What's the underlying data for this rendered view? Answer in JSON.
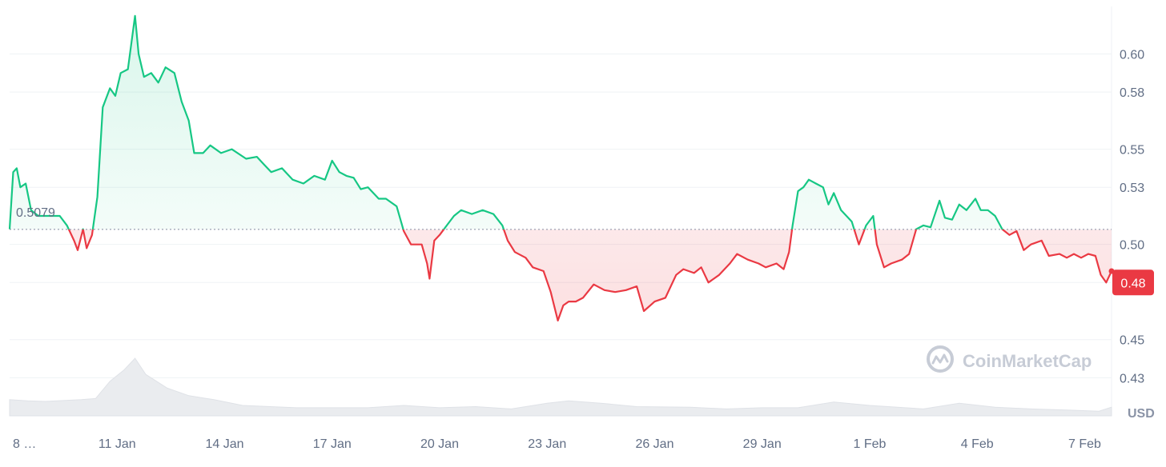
{
  "chart_data": {
    "type": "line",
    "baseline": 0.5079,
    "baseline_label": "0.5079",
    "current_price": 0.48,
    "current_price_label": "0.48",
    "unit_label": "USD",
    "watermark": "CoinMarketCap",
    "ylim": [
      0.41,
      0.625
    ],
    "y_ticks": [
      0.43,
      0.45,
      0.48,
      0.5,
      0.53,
      0.55,
      0.58,
      0.6
    ],
    "y_tick_labels": [
      "0.43",
      "0.45",
      "0.48",
      "0.50",
      "0.53",
      "0.55",
      "0.58",
      "0.60"
    ],
    "grid": true,
    "x_tick_labels": [
      "8 …",
      "11 Jan",
      "14 Jan",
      "17 Jan",
      "20 Jan",
      "23 Jan",
      "26 Jan",
      "29 Jan",
      "1 Feb",
      "4 Feb",
      "7 Feb"
    ],
    "x_tick_days": [
      8,
      11,
      14,
      17,
      20,
      23,
      26,
      29,
      32,
      35,
      38
    ],
    "up_color": "#16c784",
    "down_color": "#ea3943",
    "series": [
      {
        "points": [
          [
            8.0,
            0.508
          ],
          [
            8.1,
            0.538
          ],
          [
            8.2,
            0.54
          ],
          [
            8.3,
            0.53
          ],
          [
            8.45,
            0.532
          ],
          [
            8.6,
            0.518
          ],
          [
            8.8,
            0.515
          ],
          [
            9.4,
            0.515
          ],
          [
            9.6,
            0.51
          ],
          [
            9.8,
            0.502
          ],
          [
            9.9,
            0.497
          ],
          [
            10.05,
            0.508
          ],
          [
            10.15,
            0.498
          ],
          [
            10.3,
            0.505
          ],
          [
            10.45,
            0.525
          ],
          [
            10.6,
            0.572
          ],
          [
            10.8,
            0.582
          ],
          [
            10.95,
            0.578
          ],
          [
            11.1,
            0.59
          ],
          [
            11.3,
            0.592
          ],
          [
            11.5,
            0.62
          ],
          [
            11.6,
            0.6
          ],
          [
            11.75,
            0.588
          ],
          [
            11.95,
            0.59
          ],
          [
            12.15,
            0.585
          ],
          [
            12.35,
            0.593
          ],
          [
            12.6,
            0.59
          ],
          [
            12.8,
            0.575
          ],
          [
            13.0,
            0.565
          ],
          [
            13.15,
            0.548
          ],
          [
            13.4,
            0.548
          ],
          [
            13.6,
            0.552
          ],
          [
            13.9,
            0.548
          ],
          [
            14.2,
            0.55
          ],
          [
            14.6,
            0.545
          ],
          [
            14.9,
            0.546
          ],
          [
            15.1,
            0.542
          ],
          [
            15.3,
            0.538
          ],
          [
            15.6,
            0.54
          ],
          [
            15.9,
            0.534
          ],
          [
            16.2,
            0.532
          ],
          [
            16.5,
            0.536
          ],
          [
            16.8,
            0.534
          ],
          [
            17.0,
            0.544
          ],
          [
            17.2,
            0.538
          ],
          [
            17.4,
            0.536
          ],
          [
            17.6,
            0.535
          ],
          [
            17.8,
            0.529
          ],
          [
            18.0,
            0.53
          ],
          [
            18.3,
            0.524
          ],
          [
            18.5,
            0.524
          ],
          [
            18.8,
            0.52
          ],
          [
            19.0,
            0.507
          ],
          [
            19.2,
            0.5
          ],
          [
            19.5,
            0.5
          ],
          [
            19.65,
            0.49
          ],
          [
            19.72,
            0.482
          ],
          [
            19.85,
            0.502
          ],
          [
            20.0,
            0.505
          ],
          [
            20.2,
            0.51
          ],
          [
            20.4,
            0.515
          ],
          [
            20.6,
            0.518
          ],
          [
            20.9,
            0.516
          ],
          [
            21.2,
            0.518
          ],
          [
            21.5,
            0.516
          ],
          [
            21.75,
            0.51
          ],
          [
            21.9,
            0.502
          ],
          [
            22.1,
            0.496
          ],
          [
            22.4,
            0.493
          ],
          [
            22.6,
            0.488
          ],
          [
            22.9,
            0.486
          ],
          [
            23.1,
            0.475
          ],
          [
            23.3,
            0.46
          ],
          [
            23.45,
            0.468
          ],
          [
            23.6,
            0.47
          ],
          [
            23.8,
            0.47
          ],
          [
            24.0,
            0.472
          ],
          [
            24.3,
            0.479
          ],
          [
            24.6,
            0.476
          ],
          [
            24.9,
            0.475
          ],
          [
            25.2,
            0.476
          ],
          [
            25.5,
            0.478
          ],
          [
            25.7,
            0.465
          ],
          [
            26.0,
            0.47
          ],
          [
            26.3,
            0.472
          ],
          [
            26.6,
            0.484
          ],
          [
            26.8,
            0.487
          ],
          [
            27.1,
            0.485
          ],
          [
            27.3,
            0.488
          ],
          [
            27.5,
            0.48
          ],
          [
            27.8,
            0.484
          ],
          [
            28.1,
            0.49
          ],
          [
            28.3,
            0.495
          ],
          [
            28.6,
            0.492
          ],
          [
            28.9,
            0.49
          ],
          [
            29.1,
            0.488
          ],
          [
            29.4,
            0.49
          ],
          [
            29.6,
            0.487
          ],
          [
            29.75,
            0.496
          ],
          [
            29.85,
            0.51
          ],
          [
            30.0,
            0.528
          ],
          [
            30.15,
            0.53
          ],
          [
            30.3,
            0.534
          ],
          [
            30.5,
            0.532
          ],
          [
            30.7,
            0.53
          ],
          [
            30.85,
            0.521
          ],
          [
            31.0,
            0.527
          ],
          [
            31.2,
            0.518
          ],
          [
            31.5,
            0.512
          ],
          [
            31.7,
            0.5
          ],
          [
            31.9,
            0.51
          ],
          [
            32.1,
            0.515
          ],
          [
            32.2,
            0.5
          ],
          [
            32.4,
            0.488
          ],
          [
            32.6,
            0.49
          ],
          [
            32.9,
            0.492
          ],
          [
            33.1,
            0.495
          ],
          [
            33.3,
            0.508
          ],
          [
            33.5,
            0.51
          ],
          [
            33.7,
            0.509
          ],
          [
            33.95,
            0.523
          ],
          [
            34.1,
            0.514
          ],
          [
            34.3,
            0.513
          ],
          [
            34.5,
            0.521
          ],
          [
            34.7,
            0.518
          ],
          [
            34.95,
            0.524
          ],
          [
            35.1,
            0.518
          ],
          [
            35.3,
            0.518
          ],
          [
            35.5,
            0.515
          ],
          [
            35.7,
            0.508
          ],
          [
            35.9,
            0.505
          ],
          [
            36.1,
            0.507
          ],
          [
            36.3,
            0.497
          ],
          [
            36.5,
            0.5
          ],
          [
            36.8,
            0.502
          ],
          [
            37.0,
            0.494
          ],
          [
            37.3,
            0.495
          ],
          [
            37.5,
            0.493
          ],
          [
            37.7,
            0.495
          ],
          [
            37.9,
            0.493
          ],
          [
            38.1,
            0.495
          ],
          [
            38.3,
            0.494
          ],
          [
            38.45,
            0.484
          ],
          [
            38.6,
            0.48
          ],
          [
            38.75,
            0.486
          ]
        ]
      }
    ],
    "volume": [
      [
        8.0,
        0.28
      ],
      [
        8.5,
        0.26
      ],
      [
        9.0,
        0.25
      ],
      [
        10.0,
        0.28
      ],
      [
        10.4,
        0.3
      ],
      [
        10.8,
        0.6
      ],
      [
        11.2,
        0.8
      ],
      [
        11.5,
        1.0
      ],
      [
        11.8,
        0.72
      ],
      [
        12.4,
        0.48
      ],
      [
        13.0,
        0.35
      ],
      [
        13.7,
        0.28
      ],
      [
        14.5,
        0.18
      ],
      [
        16.0,
        0.14
      ],
      [
        18.0,
        0.14
      ],
      [
        19.0,
        0.18
      ],
      [
        20.0,
        0.14
      ],
      [
        21.0,
        0.16
      ],
      [
        22.0,
        0.12
      ],
      [
        23.0,
        0.22
      ],
      [
        23.6,
        0.26
      ],
      [
        24.5,
        0.22
      ],
      [
        25.5,
        0.16
      ],
      [
        27.0,
        0.15
      ],
      [
        28.0,
        0.12
      ],
      [
        29.0,
        0.14
      ],
      [
        30.0,
        0.14
      ],
      [
        31.0,
        0.24
      ],
      [
        32.0,
        0.18
      ],
      [
        33.5,
        0.12
      ],
      [
        34.5,
        0.22
      ],
      [
        35.5,
        0.15
      ],
      [
        36.5,
        0.12
      ],
      [
        37.5,
        0.1
      ],
      [
        38.4,
        0.08
      ],
      [
        38.75,
        0.15
      ]
    ]
  }
}
